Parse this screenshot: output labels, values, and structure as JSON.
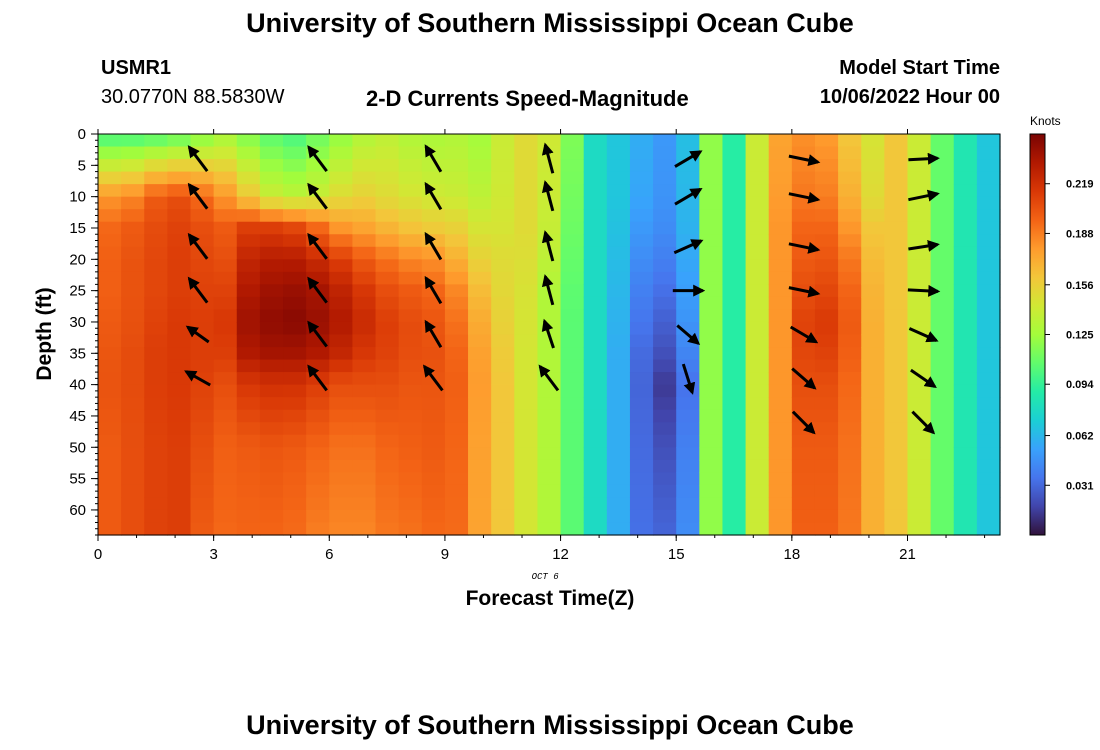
{
  "header": {
    "title": "University of Southern Mississippi Ocean Cube",
    "station_id": "USMR1",
    "station_coords": "30.0770N  88.5830W",
    "subtitle": "2-D Currents Speed-Magnitude",
    "model_start_label": "Model Start Time",
    "model_start_value": "10/06/2022 Hour 00"
  },
  "footer": {
    "title": "University of Southern Mississippi Ocean Cube"
  },
  "chart_data": {
    "type": "heatmap",
    "title": "2-D Currents Speed-Magnitude",
    "xlabel": "Forecast Time(Z)",
    "ylabel": "Depth (ft)",
    "x_sublabel": "OCT 6",
    "xlim": [
      0,
      23.4
    ],
    "ylim": [
      0,
      64
    ],
    "y_inverted": true,
    "x_ticks": [
      0,
      3,
      6,
      9,
      12,
      15,
      18,
      21
    ],
    "y_ticks": [
      0,
      5,
      10,
      15,
      20,
      25,
      30,
      35,
      40,
      45,
      50,
      55,
      60
    ],
    "colorbar": {
      "title": "Knots",
      "range": [
        0.0,
        0.25
      ],
      "ticks": [
        "0.219",
        "0.188",
        "0.156",
        "0.125",
        "0.094",
        "0.062",
        "0.031"
      ],
      "tick_values": [
        0.219,
        0.188,
        0.156,
        0.125,
        0.094,
        0.062,
        0.031
      ],
      "colors": [
        "#30123b",
        "#4145ab",
        "#4675ed",
        "#39a2fc",
        "#1bcfd4",
        "#24eca6",
        "#61fc6c",
        "#a4fc3b",
        "#d1e834",
        "#f3c63a",
        "#fe9b2d",
        "#f36315",
        "#d93806",
        "#b11901",
        "#7a0403"
      ]
    },
    "grid": false,
    "columns_x": [
      0,
      0.6,
      1.2,
      1.8,
      2.4,
      3,
      3.6,
      4.2,
      4.8,
      5.4,
      6,
      6.6,
      7.2,
      7.8,
      8.4,
      9,
      9.6,
      10.2,
      10.8,
      11.4,
      12,
      12.6,
      13.2,
      13.8,
      14.4,
      15,
      15.6,
      16.2,
      16.8,
      17.4,
      18,
      18.6,
      19.2,
      19.8,
      20.4,
      21,
      21.6,
      22.2,
      22.8
    ],
    "depth_profile": [
      0,
      10,
      15,
      20,
      25,
      30,
      35,
      40,
      50,
      64
    ],
    "speed_profiles": [
      [
        0.098,
        0.18,
        0.195,
        0.198,
        0.198,
        0.2,
        0.202,
        0.203,
        0.2,
        0.2
      ],
      [
        0.098,
        0.185,
        0.2,
        0.203,
        0.203,
        0.204,
        0.206,
        0.206,
        0.205,
        0.205
      ],
      [
        0.1,
        0.2,
        0.206,
        0.208,
        0.208,
        0.21,
        0.212,
        0.212,
        0.21,
        0.21
      ],
      [
        0.105,
        0.205,
        0.21,
        0.212,
        0.212,
        0.214,
        0.214,
        0.214,
        0.212,
        0.212
      ],
      [
        0.115,
        0.195,
        0.205,
        0.208,
        0.21,
        0.212,
        0.212,
        0.21,
        0.205,
        0.2
      ],
      [
        0.125,
        0.18,
        0.2,
        0.205,
        0.21,
        0.215,
        0.212,
        0.205,
        0.198,
        0.195
      ],
      [
        0.115,
        0.16,
        0.212,
        0.225,
        0.232,
        0.238,
        0.232,
        0.215,
        0.2,
        0.196
      ],
      [
        0.105,
        0.14,
        0.212,
        0.23,
        0.238,
        0.243,
        0.236,
        0.218,
        0.202,
        0.196
      ],
      [
        0.1,
        0.135,
        0.208,
        0.23,
        0.24,
        0.245,
        0.236,
        0.218,
        0.2,
        0.194
      ],
      [
        0.11,
        0.14,
        0.195,
        0.222,
        0.236,
        0.24,
        0.232,
        0.212,
        0.196,
        0.188
      ],
      [
        0.12,
        0.15,
        0.18,
        0.212,
        0.226,
        0.232,
        0.224,
        0.205,
        0.192,
        0.185
      ],
      [
        0.13,
        0.155,
        0.175,
        0.2,
        0.215,
        0.222,
        0.215,
        0.205,
        0.192,
        0.185
      ],
      [
        0.135,
        0.15,
        0.168,
        0.192,
        0.205,
        0.212,
        0.21,
        0.205,
        0.196,
        0.19
      ],
      [
        0.13,
        0.145,
        0.162,
        0.185,
        0.2,
        0.206,
        0.205,
        0.202,
        0.198,
        0.192
      ],
      [
        0.128,
        0.142,
        0.158,
        0.182,
        0.196,
        0.202,
        0.204,
        0.202,
        0.2,
        0.195
      ],
      [
        0.13,
        0.14,
        0.155,
        0.17,
        0.185,
        0.192,
        0.196,
        0.198,
        0.196,
        0.194
      ],
      [
        0.125,
        0.135,
        0.145,
        0.155,
        0.165,
        0.172,
        0.176,
        0.178,
        0.176,
        0.175
      ],
      [
        0.14,
        0.142,
        0.145,
        0.15,
        0.152,
        0.155,
        0.158,
        0.16,
        0.16,
        0.16
      ],
      [
        0.15,
        0.15,
        0.15,
        0.148,
        0.146,
        0.145,
        0.144,
        0.144,
        0.144,
        0.144
      ],
      [
        0.142,
        0.14,
        0.138,
        0.135,
        0.13,
        0.13,
        0.13,
        0.13,
        0.13,
        0.13
      ],
      [
        0.115,
        0.112,
        0.11,
        0.108,
        0.106,
        0.105,
        0.105,
        0.105,
        0.105,
        0.105
      ],
      [
        0.078,
        0.078,
        0.078,
        0.078,
        0.078,
        0.078,
        0.078,
        0.078,
        0.078,
        0.078
      ],
      [
        0.068,
        0.068,
        0.066,
        0.064,
        0.062,
        0.06,
        0.058,
        0.058,
        0.058,
        0.058
      ],
      [
        0.058,
        0.055,
        0.05,
        0.045,
        0.04,
        0.036,
        0.032,
        0.03,
        0.032,
        0.034
      ],
      [
        0.05,
        0.048,
        0.045,
        0.04,
        0.034,
        0.028,
        0.022,
        0.014,
        0.022,
        0.03
      ],
      [
        0.065,
        0.062,
        0.06,
        0.056,
        0.052,
        0.048,
        0.042,
        0.035,
        0.04,
        0.045
      ],
      [
        0.12,
        0.12,
        0.12,
        0.12,
        0.12,
        0.12,
        0.12,
        0.12,
        0.12,
        0.12
      ],
      [
        0.09,
        0.09,
        0.09,
        0.09,
        0.09,
        0.09,
        0.09,
        0.09,
        0.09,
        0.09
      ],
      [
        0.14,
        0.14,
        0.14,
        0.14,
        0.14,
        0.14,
        0.14,
        0.14,
        0.14,
        0.14
      ],
      [
        0.175,
        0.178,
        0.18,
        0.18,
        0.18,
        0.18,
        0.18,
        0.18,
        0.18,
        0.18
      ],
      [
        0.182,
        0.19,
        0.196,
        0.2,
        0.205,
        0.21,
        0.208,
        0.205,
        0.2,
        0.198
      ],
      [
        0.178,
        0.188,
        0.196,
        0.202,
        0.208,
        0.214,
        0.21,
        0.205,
        0.2,
        0.198
      ],
      [
        0.16,
        0.17,
        0.18,
        0.19,
        0.196,
        0.2,
        0.198,
        0.195,
        0.192,
        0.19
      ],
      [
        0.145,
        0.15,
        0.16,
        0.165,
        0.168,
        0.17,
        0.17,
        0.17,
        0.17,
        0.17
      ],
      [
        0.16,
        0.16,
        0.16,
        0.16,
        0.16,
        0.16,
        0.16,
        0.16,
        0.16,
        0.16
      ],
      [
        0.14,
        0.14,
        0.14,
        0.14,
        0.14,
        0.14,
        0.14,
        0.14,
        0.14,
        0.14
      ],
      [
        0.108,
        0.108,
        0.108,
        0.108,
        0.108,
        0.108,
        0.108,
        0.108,
        0.108,
        0.108
      ],
      [
        0.085,
        0.085,
        0.085,
        0.085,
        0.085,
        0.085,
        0.085,
        0.085,
        0.085,
        0.085
      ],
      [
        0.068,
        0.068,
        0.068,
        0.068,
        0.068,
        0.068,
        0.068,
        0.068,
        0.068,
        0.068
      ]
    ],
    "vector_times": [
      2.6,
      5.7,
      8.7,
      11.7,
      15.3,
      18.3,
      21.4
    ],
    "vector_depths": [
      4,
      10,
      18,
      25,
      32,
      39,
      46
    ],
    "vectors": [
      [
        [
          -0.6,
          0.8
        ],
        [
          -0.6,
          0.8
        ],
        [
          -0.6,
          0.8
        ],
        [
          -0.6,
          0.8
        ],
        [
          -0.7,
          0.5
        ],
        [
          -0.8,
          0.45
        ],
        null
      ],
      [
        [
          -0.6,
          0.8
        ],
        [
          -0.6,
          0.8
        ],
        [
          -0.6,
          0.8
        ],
        [
          -0.6,
          0.8
        ],
        [
          -0.6,
          0.8
        ],
        [
          -0.6,
          0.8
        ],
        null
      ],
      [
        [
          -0.5,
          0.85
        ],
        [
          -0.5,
          0.85
        ],
        [
          -0.5,
          0.85
        ],
        [
          -0.5,
          0.85
        ],
        [
          -0.5,
          0.85
        ],
        [
          -0.6,
          0.8
        ],
        null
      ],
      [
        [
          -0.25,
          0.95
        ],
        [
          -0.25,
          0.95
        ],
        [
          -0.25,
          0.95
        ],
        [
          -0.25,
          0.95
        ],
        [
          -0.3,
          0.9
        ],
        [
          -0.6,
          0.8
        ],
        null
      ],
      [
        [
          0.85,
          0.5
        ],
        [
          0.85,
          0.5
        ],
        [
          0.9,
          0.4
        ],
        [
          1,
          0
        ],
        [
          0.7,
          -0.6
        ],
        [
          0.3,
          -0.95
        ],
        null
      ],
      [
        [
          0.97,
          -0.2
        ],
        [
          0.97,
          -0.2
        ],
        [
          0.97,
          -0.2
        ],
        [
          0.97,
          -0.2
        ],
        [
          0.85,
          -0.5
        ],
        [
          0.75,
          -0.65
        ],
        [
          0.7,
          -0.7
        ]
      ],
      [
        [
          0.97,
          0.05
        ],
        [
          0.97,
          0.2
        ],
        [
          0.97,
          0.15
        ],
        [
          1,
          -0.05
        ],
        [
          0.9,
          -0.4
        ],
        [
          0.8,
          -0.55
        ],
        [
          0.7,
          -0.7
        ]
      ]
    ]
  }
}
